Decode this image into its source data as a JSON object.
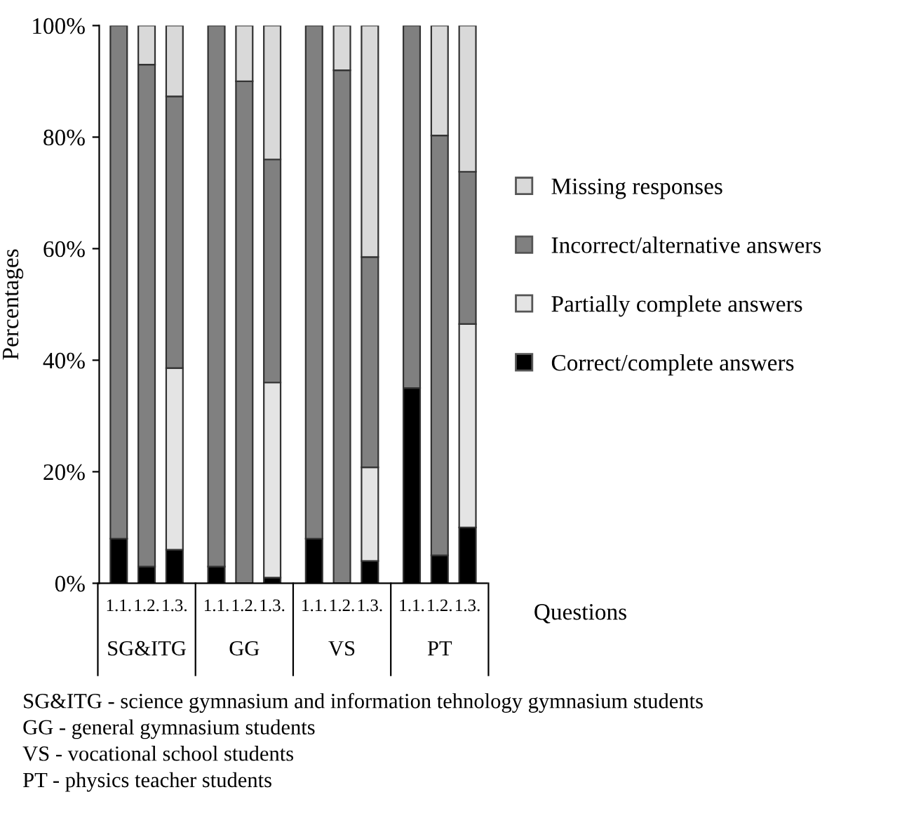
{
  "chart_data": {
    "type": "bar",
    "stacked": true,
    "ylabel": "Percentages",
    "xlabel": "Questions",
    "categories": [
      "1.1.",
      "1.2.",
      "1.3.",
      "1.1.",
      "1.2.",
      "1.3.",
      "1.1.",
      "1.2.",
      "1.3.",
      "1.1.",
      "1.2.",
      "1.3."
    ],
    "series": [
      {
        "name": "Correct/complete answers",
        "color": "#000000",
        "values": [
          8,
          3,
          6,
          3,
          0,
          1,
          8,
          0,
          4,
          35,
          5,
          10
        ]
      },
      {
        "name": "Partially complete answers",
        "color": "#e4e4e4",
        "values": [
          0,
          0,
          32.6,
          0,
          0,
          35,
          0,
          0,
          16.8,
          0,
          0,
          36.5
        ]
      },
      {
        "name": "Incorrect/alternative answers",
        "color": "#808080",
        "values": [
          92,
          90,
          48.7,
          97,
          90,
          40,
          92,
          92,
          37.7,
          65,
          75.3,
          27.3
        ]
      },
      {
        "name": "Missing responses",
        "color": "#d9d9d9",
        "values": [
          0,
          7,
          12.7,
          0,
          10,
          24,
          0,
          8,
          41.5,
          0,
          19.7,
          26.2
        ]
      }
    ],
    "ylim": [
      0,
      100
    ],
    "yticks": [
      {
        "value": 0,
        "label": "0%"
      },
      {
        "value": 20,
        "label": "20%"
      },
      {
        "value": 40,
        "label": "40%"
      },
      {
        "value": 60,
        "label": "60%"
      },
      {
        "value": 80,
        "label": "80%"
      },
      {
        "value": 100,
        "label": "100%"
      }
    ],
    "grid": false,
    "legend": "right",
    "annotations": [
      "SG&ITG",
      "GG",
      "VS",
      "PT",
      "SG&ITG - science gymnasium and information tehnology gymnasium students",
      "GG - general gymnasium students",
      "VS - vocational school students",
      "PT - physics teacher students"
    ]
  }
}
